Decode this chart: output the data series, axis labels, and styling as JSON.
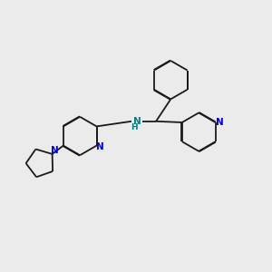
{
  "bg_color": "#ebebeb",
  "bond_color": "#1a1a1a",
  "N_color": "#0000ee",
  "NH_color": "#008080",
  "lw": 1.3,
  "dbo": 0.018,
  "xlim": [
    0,
    10
  ],
  "ylim": [
    0,
    10
  ]
}
